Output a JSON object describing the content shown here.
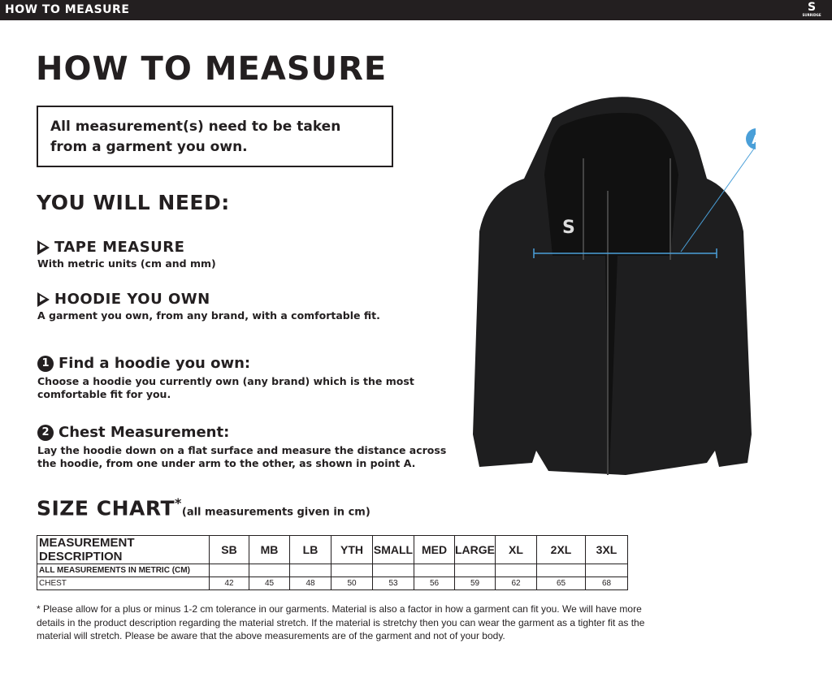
{
  "topbar": {
    "title": "HOW TO MEASURE",
    "logo_text": "SURRIDGE"
  },
  "title": "HOW TO MEASURE",
  "note": "All measurement(s) need to be taken from a garment you own.",
  "you_will_need": {
    "heading": "YOU WILL NEED:",
    "items": [
      {
        "title": "TAPE MEASURE",
        "desc": "With metric units (cm and mm)"
      },
      {
        "title": "HOODIE YOU OWN",
        "desc": "A garment you own, from any brand, with a comfortable fit."
      }
    ]
  },
  "steps": [
    {
      "num": "1",
      "title": "Find a hoodie you own:",
      "desc": "Choose a hoodie you currently own (any brand) which is the most comfortable fit for you."
    },
    {
      "num": "2",
      "title": "Chest Measurement:",
      "desc": "Lay the hoodie down on a flat surface and measure the distance across the hoodie, from one under arm to the other, as shown in point A."
    }
  ],
  "diagram": {
    "point_label": "A",
    "accent": "#4a9fd8"
  },
  "size_chart": {
    "heading": "SIZE CHART",
    "asterisk": "*",
    "subheading": "(all measurements given in cm)",
    "columns": [
      "MEASUREMENT DESCRIPTION",
      "SB",
      "MB",
      "LB",
      "YTH",
      "SMALL",
      "MED",
      "LARGE",
      "XL",
      "2XL",
      "3XL"
    ],
    "units_row": "ALL MEASUREMENTS IN METRIC (CM)",
    "rows": [
      {
        "label": "CHEST",
        "values": [
          "42",
          "45",
          "48",
          "50",
          "53",
          "56",
          "59",
          "62",
          "65",
          "68"
        ]
      }
    ]
  },
  "footnote": "* Please allow for a plus or minus 1-2 cm tolerance in our garments. Material is also a factor in how a garment can fit you. We will have more details in the product description regarding the material stretch.  If the material is stretchy then you can wear the garment as a tighter fit as the material will stretch.  Please be aware that the above measurements are of the garment and not of your body."
}
